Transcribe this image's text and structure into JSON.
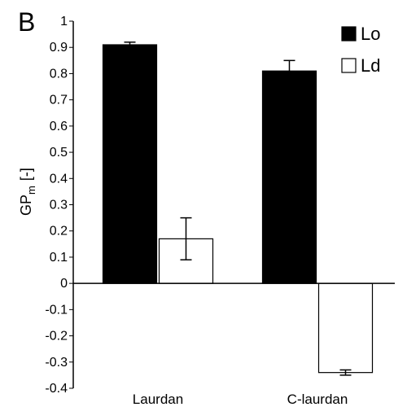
{
  "panel_label": "B",
  "chart_data": {
    "type": "bar",
    "categories": [
      "Laurdan",
      "C-laurdan"
    ],
    "series": [
      {
        "name": "Lo",
        "values": [
          0.91,
          0.81
        ],
        "errors": [
          0.01,
          0.04
        ],
        "color": "#000000"
      },
      {
        "name": "Ld",
        "values": [
          0.17,
          -0.34
        ],
        "errors": [
          0.08,
          0.01
        ],
        "color": "#ffffff"
      }
    ],
    "ylabel_main": "GP",
    "ylabel_sub": "m",
    "ylabel_unit": "[-]",
    "xlabel": "",
    "ylim": [
      -0.4,
      1.0
    ],
    "yticks": [
      -0.4,
      -0.3,
      -0.2,
      -0.1,
      0,
      0.1,
      0.2,
      0.3,
      0.4,
      0.5,
      0.6,
      0.7,
      0.8,
      0.9,
      1
    ],
    "ytick_labels": [
      "-0.4",
      "-0.3",
      "-0.2",
      "-0.1",
      "0",
      "0.1",
      "0.2",
      "0.3",
      "0.4",
      "0.5",
      "0.6",
      "0.7",
      "0.8",
      "0.9",
      "1"
    ],
    "legend_position": "top-right",
    "grid": false
  }
}
